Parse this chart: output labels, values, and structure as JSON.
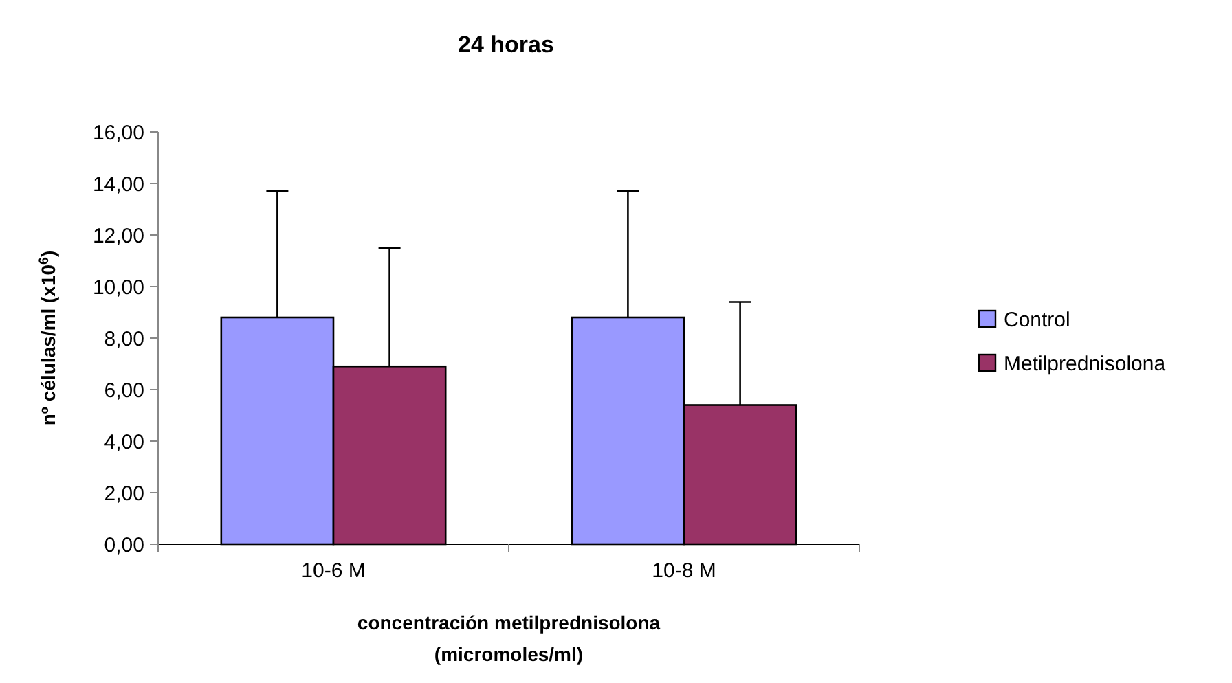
{
  "chart_data": {
    "type": "bar",
    "title": "24 horas",
    "xlabel": "concentración metilprednisolona\n(micromoles/ml)",
    "ylabel": "nº células/ml (x10$^{6}$)",
    "categories": [
      "10-6 M",
      "10-8 M"
    ],
    "series": [
      {
        "name": "Control",
        "color": "#9999ff",
        "values": [
          8.8,
          8.8
        ],
        "errors": [
          [
            8.8,
            13.7
          ],
          [
            8.8,
            13.7
          ]
        ]
      },
      {
        "name": "Metilprednisolona",
        "color": "#993366",
        "values": [
          6.9,
          5.4
        ],
        "errors": [
          [
            6.9,
            11.5
          ],
          [
            5.4,
            9.4
          ]
        ]
      }
    ],
    "ylim": [
      0,
      16
    ],
    "yticks": [
      {
        "value": 0,
        "label": "0,00"
      },
      {
        "value": 2,
        "label": "2,00"
      },
      {
        "value": 4,
        "label": "4,00"
      },
      {
        "value": 6,
        "label": "6,00"
      },
      {
        "value": 8,
        "label": "8,00"
      },
      {
        "value": 10,
        "label": "10,00"
      },
      {
        "value": 12,
        "label": "12,00"
      },
      {
        "value": 14,
        "label": "14,00"
      },
      {
        "value": 16,
        "label": "16,00"
      }
    ],
    "grid": false,
    "legend": "right"
  }
}
